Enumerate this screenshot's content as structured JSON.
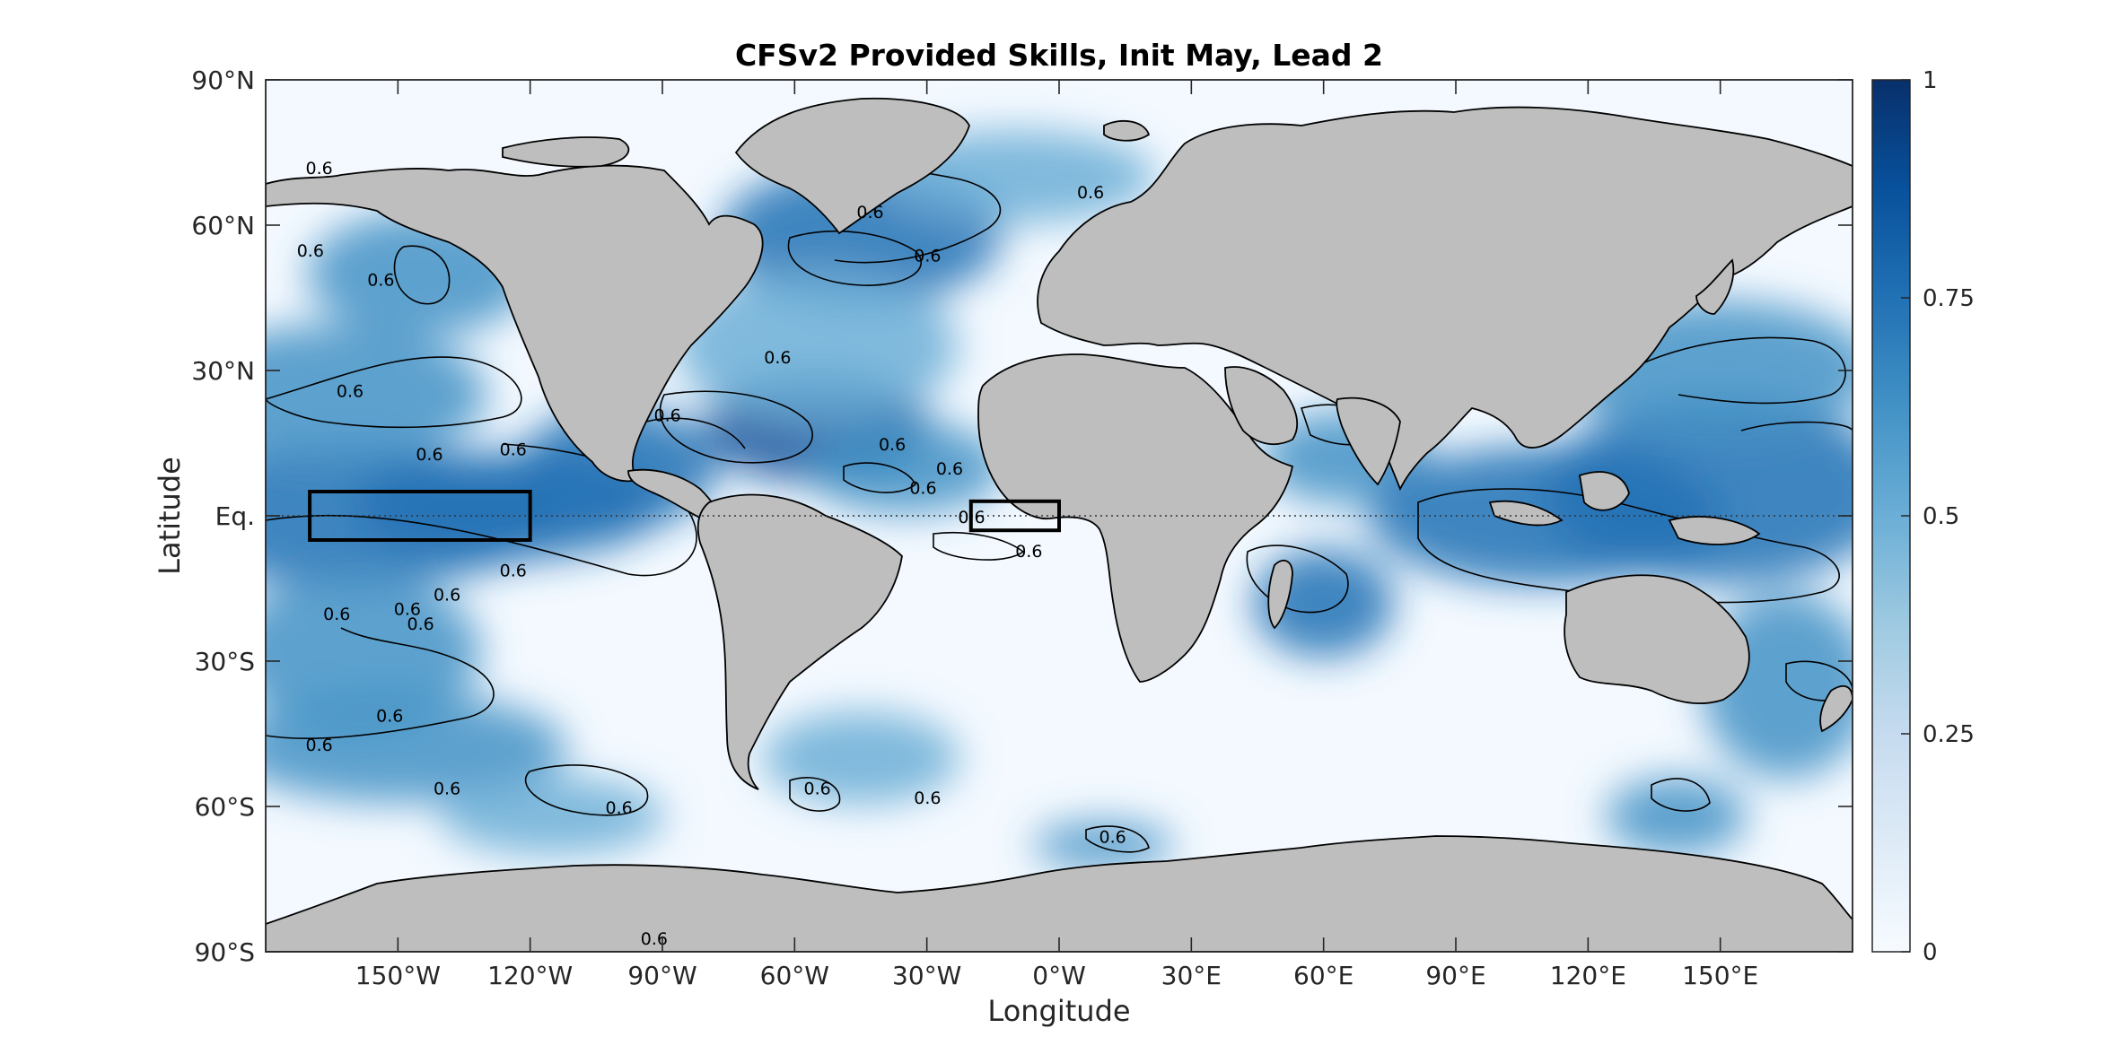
{
  "chart_data": {
    "type": "heatmap",
    "title": "CFSv2 Provided Skills, Init May, Lead 2",
    "xlabel": "Longitude",
    "ylabel": "Latitude",
    "xlim": [
      -180,
      180
    ],
    "ylim": [
      -90,
      90
    ],
    "x_ticks": [
      {
        "value": -150,
        "label": "150°W"
      },
      {
        "value": -120,
        "label": "120°W"
      },
      {
        "value": -90,
        "label": "90°W"
      },
      {
        "value": -60,
        "label": "60°W"
      },
      {
        "value": -30,
        "label": "30°W"
      },
      {
        "value": 0,
        "label": "0°W"
      },
      {
        "value": 30,
        "label": "30°E"
      },
      {
        "value": 60,
        "label": "60°E"
      },
      {
        "value": 90,
        "label": "90°E"
      },
      {
        "value": 120,
        "label": "120°E"
      },
      {
        "value": 150,
        "label": "150°E"
      }
    ],
    "y_ticks": [
      {
        "value": 90,
        "label": "90°N"
      },
      {
        "value": 60,
        "label": "60°N"
      },
      {
        "value": 30,
        "label": "30°N"
      },
      {
        "value": 0,
        "label": "Eq."
      },
      {
        "value": -30,
        "label": "30°S"
      },
      {
        "value": -60,
        "label": "60°S"
      },
      {
        "value": -90,
        "label": "90°S"
      }
    ],
    "colorbar": {
      "range": [
        0,
        1
      ],
      "ticks": [
        {
          "value": 0,
          "label": "0"
        },
        {
          "value": 0.25,
          "label": "0.25"
        },
        {
          "value": 0.5,
          "label": "0.5"
        },
        {
          "value": 0.75,
          "label": "0.75"
        },
        {
          "value": 1,
          "label": "1"
        }
      ],
      "colors": [
        "#f7fbff",
        "#deebf7",
        "#c6dbef",
        "#9ecae1",
        "#6baed6",
        "#4292c6",
        "#2171b5",
        "#08519c",
        "#08306b"
      ]
    },
    "contour_level": 0.6,
    "contour_label": "0.6",
    "land_color": "#bebebe",
    "highlight_boxes": [
      {
        "lon": [
          -170,
          -120
        ],
        "lat": [
          -5,
          5
        ]
      },
      {
        "lon": [
          -20,
          0
        ],
        "lat": [
          -3,
          3
        ]
      }
    ],
    "skill_field": [
      {
        "lon": -160,
        "lat": 0,
        "value": 0.78,
        "sx": 30,
        "sy": 9
      },
      {
        "lon": -125,
        "lat": 2,
        "value": 0.72,
        "sx": 22,
        "sy": 7
      },
      {
        "lon": -100,
        "lat": 10,
        "value": 0.7,
        "sx": 14,
        "sy": 8
      },
      {
        "lon": -165,
        "lat": 25,
        "value": 0.65,
        "sx": 22,
        "sy": 9
      },
      {
        "lon": -145,
        "lat": 50,
        "value": 0.6,
        "sx": 16,
        "sy": 8
      },
      {
        "lon": -160,
        "lat": -28,
        "value": 0.68,
        "sx": 18,
        "sy": 10
      },
      {
        "lon": -150,
        "lat": -48,
        "value": 0.6,
        "sx": 24,
        "sy": 7
      },
      {
        "lon": -115,
        "lat": -62,
        "value": 0.55,
        "sx": 16,
        "sy": 5
      },
      {
        "lon": -55,
        "lat": 18,
        "value": 0.82,
        "sx": 16,
        "sy": 7
      },
      {
        "lon": -35,
        "lat": 10,
        "value": 0.65,
        "sx": 14,
        "sy": 6
      },
      {
        "lon": -45,
        "lat": 58,
        "value": 0.75,
        "sx": 20,
        "sy": 9
      },
      {
        "lon": -55,
        "lat": 35,
        "value": 0.5,
        "sx": 20,
        "sy": 10
      },
      {
        "lon": -10,
        "lat": 70,
        "value": 0.55,
        "sx": 20,
        "sy": 6
      },
      {
        "lon": -45,
        "lat": -50,
        "value": 0.55,
        "sx": 14,
        "sy": 6
      },
      {
        "lon": 10,
        "lat": -68,
        "value": 0.62,
        "sx": 10,
        "sy": 3
      },
      {
        "lon": 60,
        "lat": -18,
        "value": 0.72,
        "sx": 10,
        "sy": 7
      },
      {
        "lon": 65,
        "lat": 12,
        "value": 0.62,
        "sx": 12,
        "sy": 6
      },
      {
        "lon": 110,
        "lat": 0,
        "value": 0.75,
        "sx": 25,
        "sy": 9
      },
      {
        "lon": 150,
        "lat": 5,
        "value": 0.7,
        "sx": 25,
        "sy": 12
      },
      {
        "lon": 150,
        "lat": 30,
        "value": 0.62,
        "sx": 22,
        "sy": 9
      },
      {
        "lon": 165,
        "lat": -35,
        "value": 0.65,
        "sx": 12,
        "sy": 12
      },
      {
        "lon": 140,
        "lat": -62,
        "value": 0.6,
        "sx": 10,
        "sy": 5
      }
    ]
  }
}
